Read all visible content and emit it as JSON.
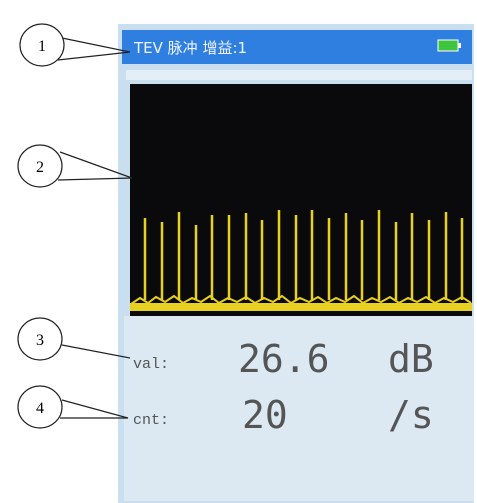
{
  "callouts": [
    1,
    2,
    3,
    4
  ],
  "header": {
    "mode": "TEV 脉冲 增益:1"
  },
  "readings": [
    {
      "label": "val:",
      "value": 26.6,
      "unit": "dB"
    },
    {
      "label": "cnt:",
      "value": 20,
      "unit": "/s"
    }
  ]
}
